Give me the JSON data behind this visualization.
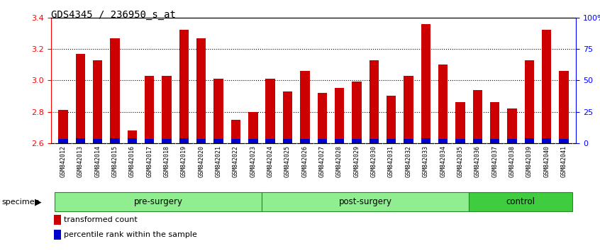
{
  "title": "GDS4345 / 236950_s_at",
  "samples": [
    "GSM842012",
    "GSM842013",
    "GSM842014",
    "GSM842015",
    "GSM842016",
    "GSM842017",
    "GSM842018",
    "GSM842019",
    "GSM842020",
    "GSM842021",
    "GSM842022",
    "GSM842023",
    "GSM842024",
    "GSM842025",
    "GSM842026",
    "GSM842027",
    "GSM842028",
    "GSM842029",
    "GSM842030",
    "GSM842031",
    "GSM842032",
    "GSM842033",
    "GSM842034",
    "GSM842035",
    "GSM842036",
    "GSM842037",
    "GSM842038",
    "GSM842039",
    "GSM842040",
    "GSM842041"
  ],
  "red_values": [
    2.81,
    3.17,
    3.13,
    3.27,
    2.68,
    3.03,
    3.03,
    3.32,
    3.27,
    3.01,
    2.75,
    2.8,
    3.01,
    2.93,
    3.06,
    2.92,
    2.95,
    2.99,
    3.13,
    2.9,
    3.03,
    3.36,
    3.1,
    2.86,
    2.94,
    2.86,
    2.82,
    3.13,
    3.32,
    3.06
  ],
  "blue_heights": [
    0.025,
    0.03,
    0.025,
    0.03,
    0.03,
    0.025,
    0.025,
    0.03,
    0.025,
    0.025,
    0.025,
    0.025,
    0.025,
    0.025,
    0.025,
    0.025,
    0.025,
    0.025,
    0.025,
    0.025,
    0.025,
    0.03,
    0.025,
    0.025,
    0.025,
    0.025,
    0.025,
    0.03,
    0.03,
    0.025
  ],
  "groups": [
    {
      "label": "pre-surgery",
      "start": 0,
      "end": 12
    },
    {
      "label": "post-surgery",
      "start": 12,
      "end": 24
    },
    {
      "label": "control",
      "start": 24,
      "end": 30
    }
  ],
  "group_colors": [
    "#90ee90",
    "#90ee90",
    "#3fcd3f"
  ],
  "ylim": [
    2.6,
    3.4
  ],
  "yticks_left": [
    2.6,
    2.8,
    3.0,
    3.2,
    3.4
  ],
  "yticks_right": [
    0,
    25,
    50,
    75,
    100
  ],
  "ytick_right_labels": [
    "0",
    "25",
    "50",
    "75",
    "100%"
  ],
  "bar_color_red": "#cc0000",
  "bar_color_blue": "#0000cc",
  "bar_width": 0.55,
  "base": 2.6,
  "legend_red": "transformed count",
  "legend_blue": "percentile rank within the sample",
  "specimen_label": "specimen"
}
